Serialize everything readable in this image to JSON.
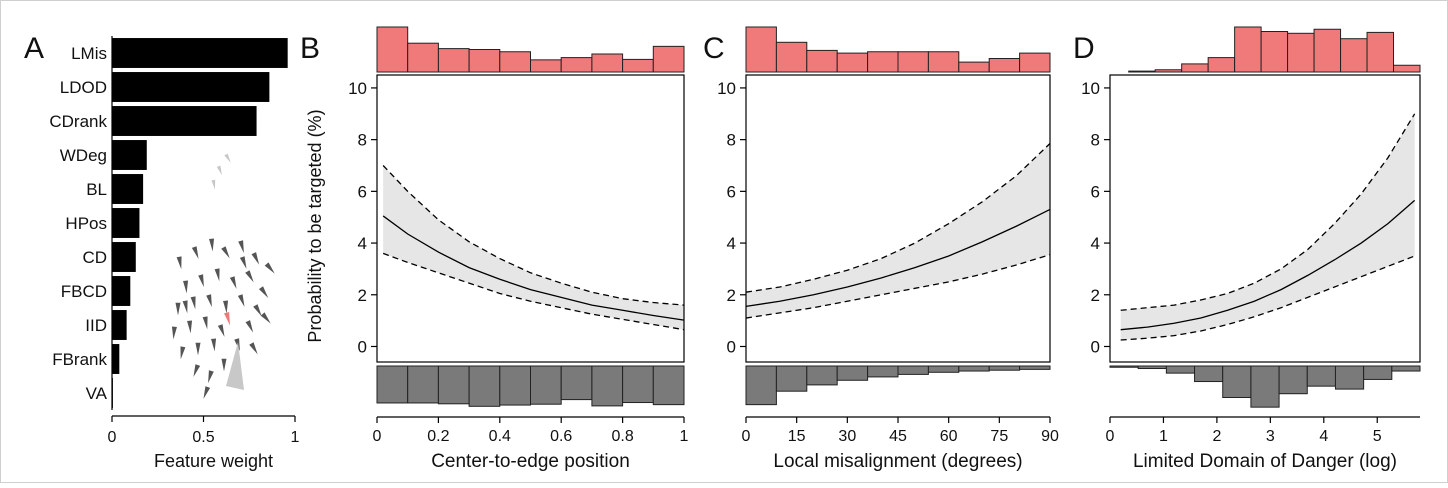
{
  "panels": [
    "A",
    "B",
    "C",
    "D"
  ],
  "colors": {
    "bar": "#000000",
    "top_hist": "#f07a7a",
    "bottom_hist": "#7a7a7a",
    "ci_band": "#e6e6e6",
    "line": "#000000",
    "fish_grey": "#555555",
    "fish_focal": "#f07a7a"
  },
  "chart_data": [
    {
      "panel": "A",
      "type": "bar",
      "orientation": "horizontal",
      "categories": [
        "LMis",
        "LDOD",
        "CDrank",
        "WDeg",
        "BL",
        "HPos",
        "CD",
        "FBCD",
        "IID",
        "FBrank",
        "VA"
      ],
      "values": [
        0.96,
        0.86,
        0.79,
        0.19,
        0.17,
        0.15,
        0.13,
        0.1,
        0.08,
        0.04,
        0.005
      ],
      "xlabel": "Feature weight",
      "xlim": [
        0,
        1
      ],
      "xticks": [
        "0",
        "0.5",
        "1"
      ],
      "xtick_values": [
        0,
        0.5,
        1
      ]
    },
    {
      "panel": "B",
      "type": "line",
      "xlabel": "Center-to-edge position",
      "ylabel": "Probability to be targeted (%)",
      "xlim": [
        0,
        1
      ],
      "ylim": [
        -0.6,
        10.5
      ],
      "xticks": [
        "0",
        "0.2",
        "0.4",
        "0.6",
        "0.8",
        "1"
      ],
      "xtick_values": [
        0,
        0.2,
        0.4,
        0.6,
        0.8,
        1
      ],
      "yticks": [
        "0",
        "2",
        "4",
        "6",
        "8",
        "10"
      ],
      "ytick_values": [
        0,
        2,
        4,
        6,
        8,
        10
      ],
      "x": [
        0.02,
        0.1,
        0.2,
        0.3,
        0.4,
        0.5,
        0.6,
        0.7,
        0.8,
        0.9,
        1.0
      ],
      "fit": [
        5.05,
        4.35,
        3.65,
        3.05,
        2.6,
        2.2,
        1.9,
        1.6,
        1.4,
        1.2,
        1.02
      ],
      "upper": [
        7.0,
        6.0,
        4.9,
        4.05,
        3.4,
        2.85,
        2.45,
        2.1,
        1.85,
        1.7,
        1.6
      ],
      "lower": [
        3.6,
        3.25,
        2.85,
        2.45,
        2.05,
        1.75,
        1.5,
        1.25,
        1.05,
        0.85,
        0.65
      ],
      "top_hist": [
        1.0,
        0.64,
        0.52,
        0.5,
        0.45,
        0.27,
        0.32,
        0.4,
        0.28,
        0.57
      ],
      "bottom_hist": [
        0.88,
        0.88,
        0.9,
        0.96,
        0.93,
        0.91,
        0.8,
        0.95,
        0.87,
        0.92
      ]
    },
    {
      "panel": "C",
      "type": "line",
      "xlabel": "Local misalignment (degrees)",
      "xlim": [
        0,
        90
      ],
      "ylim": [
        -0.6,
        10.5
      ],
      "xticks": [
        "0",
        "15",
        "30",
        "45",
        "60",
        "75",
        "90"
      ],
      "xtick_values": [
        0,
        15,
        30,
        45,
        60,
        75,
        90
      ],
      "yticks": [
        "0",
        "2",
        "4",
        "6",
        "8",
        "10"
      ],
      "ytick_values": [
        0,
        2,
        4,
        6,
        8,
        10
      ],
      "x": [
        0,
        10,
        20,
        30,
        40,
        50,
        60,
        70,
        80,
        90
      ],
      "fit": [
        1.55,
        1.75,
        2.0,
        2.3,
        2.65,
        3.05,
        3.5,
        4.05,
        4.65,
        5.3
      ],
      "upper": [
        2.1,
        2.3,
        2.6,
        2.95,
        3.4,
        4.0,
        4.75,
        5.6,
        6.6,
        7.85
      ],
      "lower": [
        1.1,
        1.3,
        1.5,
        1.75,
        2.0,
        2.25,
        2.5,
        2.8,
        3.15,
        3.55
      ],
      "top_hist": [
        1.0,
        0.66,
        0.48,
        0.42,
        0.45,
        0.45,
        0.45,
        0.22,
        0.3,
        0.42
      ],
      "bottom_hist": [
        0.92,
        0.6,
        0.45,
        0.34,
        0.26,
        0.2,
        0.15,
        0.12,
        0.1,
        0.08
      ]
    },
    {
      "panel": "D",
      "type": "line",
      "xlabel": "Limited Domain of Danger (log)",
      "xlim": [
        0,
        5.8
      ],
      "ylim": [
        -0.6,
        10.5
      ],
      "xticks": [
        "0",
        "1",
        "2",
        "3",
        "4",
        "5"
      ],
      "xtick_values": [
        0,
        1,
        2,
        3,
        4,
        5
      ],
      "yticks": [
        "0",
        "2",
        "4",
        "6",
        "8",
        "10"
      ],
      "ytick_values": [
        0,
        2,
        4,
        6,
        8,
        10
      ],
      "x": [
        0.2,
        0.7,
        1.2,
        1.7,
        2.2,
        2.7,
        3.2,
        3.7,
        4.2,
        4.7,
        5.2,
        5.7
      ],
      "fit": [
        0.65,
        0.75,
        0.9,
        1.1,
        1.4,
        1.75,
        2.2,
        2.75,
        3.35,
        4.0,
        4.75,
        5.65
      ],
      "upper": [
        1.4,
        1.5,
        1.6,
        1.8,
        2.05,
        2.45,
        3.0,
        3.75,
        4.75,
        5.9,
        7.3,
        9.0
      ],
      "lower": [
        0.25,
        0.32,
        0.42,
        0.6,
        0.85,
        1.15,
        1.5,
        1.9,
        2.3,
        2.7,
        3.1,
        3.5
      ],
      "top_hist_start": 0.35,
      "top_hist": [
        0.02,
        0.05,
        0.18,
        0.32,
        1.0,
        0.9,
        0.86,
        0.95,
        0.74,
        0.88,
        0.15
      ],
      "bottom_hist": [
        0.03,
        0.06,
        0.17,
        0.37,
        0.75,
        0.98,
        0.66,
        0.48,
        0.55,
        0.32,
        0.12
      ]
    }
  ]
}
